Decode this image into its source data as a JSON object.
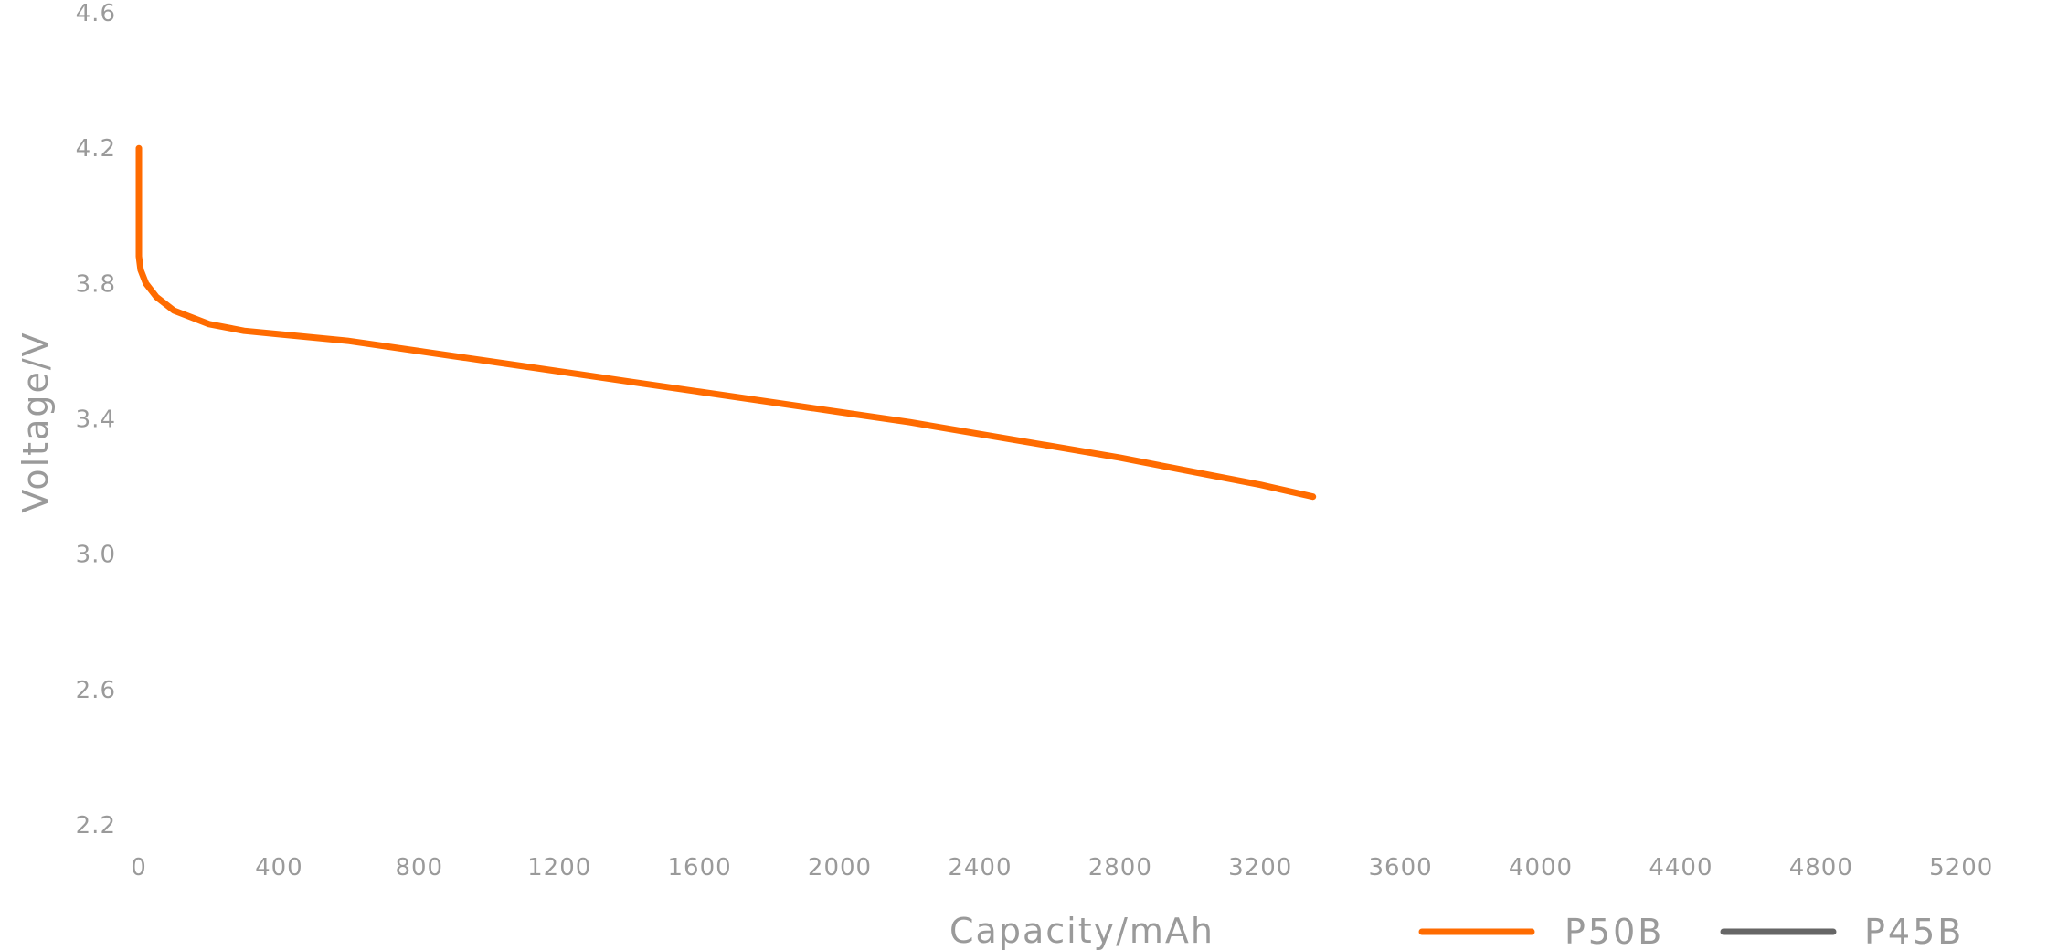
{
  "chart_data": {
    "type": "line",
    "title": "",
    "xlabel": "Capacity/mAh",
    "ylabel": "Voltage/V",
    "xlim": [
      0,
      5200
    ],
    "ylim": [
      2.2,
      4.6
    ],
    "x_ticks": [
      0,
      400,
      800,
      1200,
      1600,
      2000,
      2400,
      2800,
      3200,
      3600,
      4000,
      4400,
      4800,
      5200
    ],
    "y_ticks": [
      "2.2",
      "2.6",
      "3.0",
      "3.4",
      "3.8",
      "4.2",
      "4.6"
    ],
    "grid": false,
    "legend_position": "bottom-right",
    "series": [
      {
        "name": "P50B",
        "color": "#ff6b00",
        "points": [
          [
            0,
            4.2
          ],
          [
            0,
            3.88
          ],
          [
            5,
            3.84
          ],
          [
            20,
            3.8
          ],
          [
            50,
            3.76
          ],
          [
            100,
            3.72
          ],
          [
            150,
            3.7
          ],
          [
            200,
            3.68
          ],
          [
            300,
            3.66
          ],
          [
            400,
            3.65
          ],
          [
            600,
            3.63
          ],
          [
            800,
            3.6
          ],
          [
            1000,
            3.57
          ],
          [
            1200,
            3.54
          ],
          [
            1400,
            3.51
          ],
          [
            1600,
            3.48
          ],
          [
            1800,
            3.45
          ],
          [
            2000,
            3.42
          ],
          [
            2200,
            3.39
          ],
          [
            2400,
            3.355
          ],
          [
            2600,
            3.32
          ],
          [
            2800,
            3.285
          ],
          [
            3000,
            3.245
          ],
          [
            3200,
            3.205
          ],
          [
            3350,
            3.17
          ]
        ]
      },
      {
        "name": "P45B",
        "color": "#666666",
        "points": []
      }
    ]
  }
}
